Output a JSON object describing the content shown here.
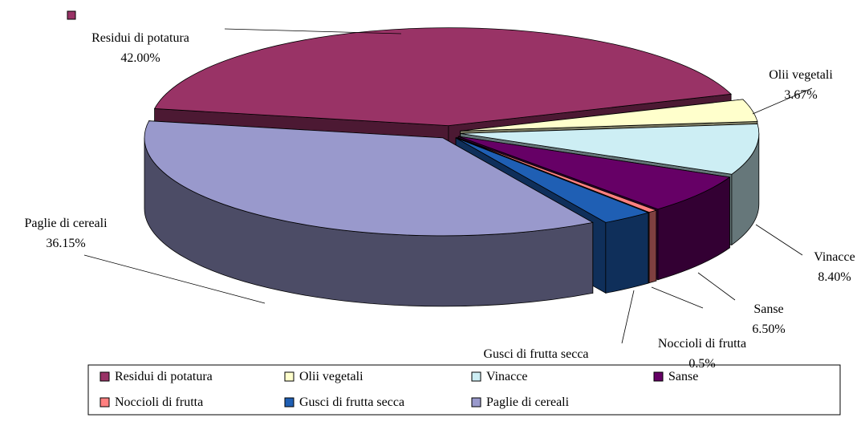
{
  "chart_data": {
    "type": "pie3d",
    "categories": [
      "Residui di potatura",
      "Olii vegetali",
      "Vinacce",
      "Sanse",
      "Noccioli di frutta",
      "Gusci di frutta secca",
      "Paglie di cereali"
    ],
    "values": [
      42.0,
      3.67,
      8.4,
      6.5,
      0.5,
      2.78,
      36.15
    ],
    "value_labels": [
      "42.00%",
      "3.67%",
      "8.40%",
      "6.50%",
      "0.5%",
      null,
      "36.15%"
    ],
    "colors": [
      "#993366",
      "#ffffcc",
      "#cdeef4",
      "#660066",
      "#ff8080",
      "#1f5fb4",
      "#9999cc"
    ],
    "legend": "bottom"
  }
}
